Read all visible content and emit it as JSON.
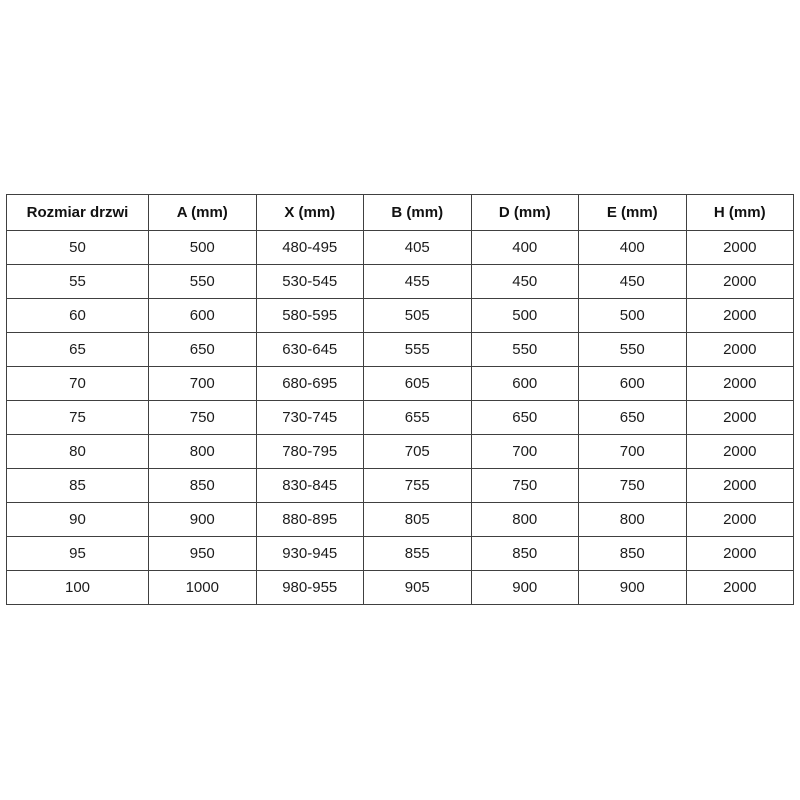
{
  "table": {
    "name": "door-size-table",
    "headers": [
      "Rozmiar drzwi",
      "A (mm)",
      "X (mm)",
      "B (mm)",
      "D (mm)",
      "E (mm)",
      "H (mm)"
    ],
    "rows": [
      [
        "50",
        "500",
        "480-495",
        "405",
        "400",
        "400",
        "2000"
      ],
      [
        "55",
        "550",
        "530-545",
        "455",
        "450",
        "450",
        "2000"
      ],
      [
        "60",
        "600",
        "580-595",
        "505",
        "500",
        "500",
        "2000"
      ],
      [
        "65",
        "650",
        "630-645",
        "555",
        "550",
        "550",
        "2000"
      ],
      [
        "70",
        "700",
        "680-695",
        "605",
        "600",
        "600",
        "2000"
      ],
      [
        "75",
        "750",
        "730-745",
        "655",
        "650",
        "650",
        "2000"
      ],
      [
        "80",
        "800",
        "780-795",
        "705",
        "700",
        "700",
        "2000"
      ],
      [
        "85",
        "850",
        "830-845",
        "755",
        "750",
        "750",
        "2000"
      ],
      [
        "90",
        "900",
        "880-895",
        "805",
        "800",
        "800",
        "2000"
      ],
      [
        "95",
        "950",
        "930-945",
        "855",
        "850",
        "850",
        "2000"
      ],
      [
        "100",
        "1000",
        "980-955",
        "905",
        "900",
        "900",
        "2000"
      ]
    ],
    "colors": {
      "border": "#404040",
      "text": "#1c1c1c",
      "background": "#ffffff"
    }
  }
}
